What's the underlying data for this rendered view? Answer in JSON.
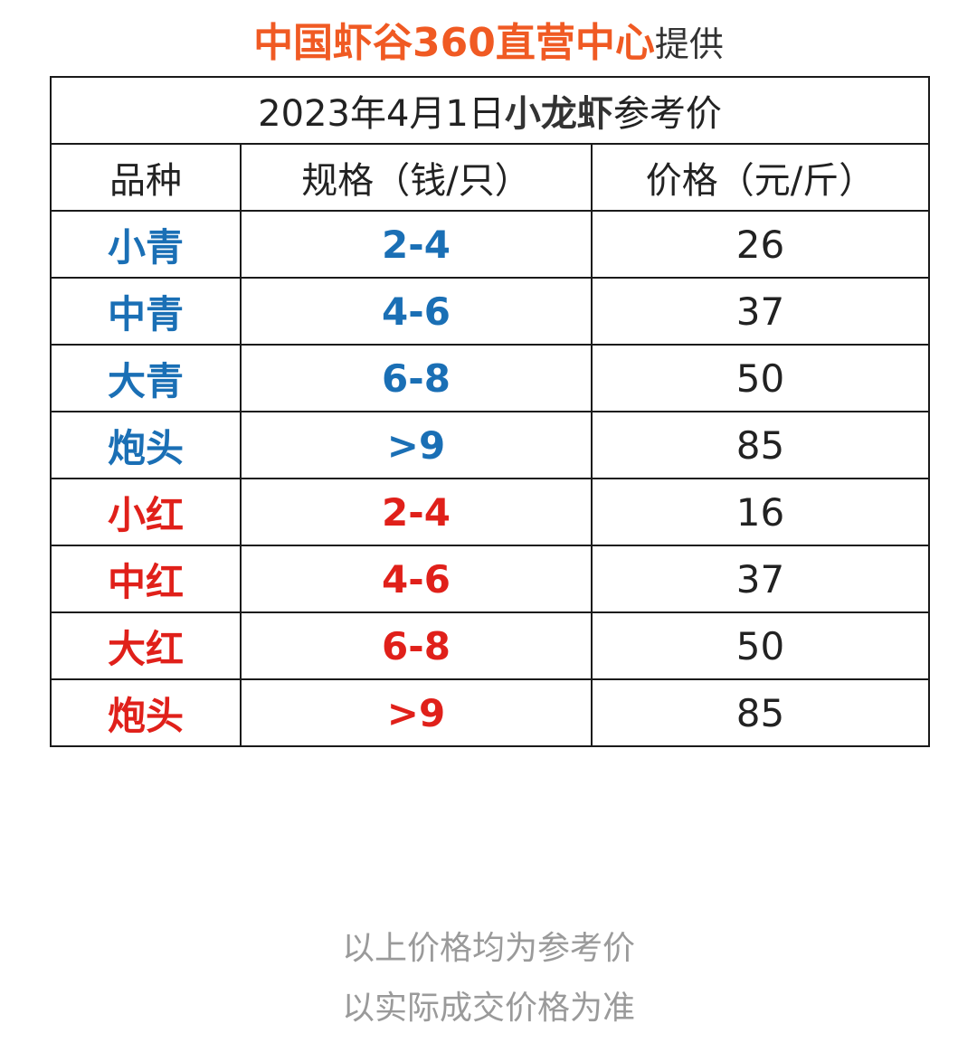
{
  "header": {
    "brand": "中国虾谷360直营中心",
    "suffix": "提供",
    "brand_color": "#f05a23"
  },
  "table": {
    "title_prefix": "2023年4月1日",
    "title_bold": "小龙虾",
    "title_suffix": "参考价",
    "columns": [
      "品种",
      "规格（钱/只）",
      "价格（元/斤）"
    ],
    "colors": {
      "blue": "#1a6fb5",
      "red": "#e0201a"
    },
    "rows": [
      {
        "variety": "小青",
        "spec": "2-4",
        "price": "26",
        "color": "blue"
      },
      {
        "variety": "中青",
        "spec": "4-6",
        "price": "37",
        "color": "blue"
      },
      {
        "variety": "大青",
        "spec": "6-8",
        "price": "50",
        "color": "blue"
      },
      {
        "variety": "炮头",
        "spec": ">9",
        "price": "85",
        "color": "blue"
      },
      {
        "variety": "小红",
        "spec": "2-4",
        "price": "16",
        "color": "red"
      },
      {
        "variety": "中红",
        "spec": "4-6",
        "price": "37",
        "color": "red"
      },
      {
        "variety": "大红",
        "spec": "6-8",
        "price": "50",
        "color": "red"
      },
      {
        "variety": "炮头",
        "spec": ">9",
        "price": "85",
        "color": "red"
      }
    ]
  },
  "footer": {
    "line1": "以上价格均为参考价",
    "line2": "以实际成交价格为准"
  }
}
